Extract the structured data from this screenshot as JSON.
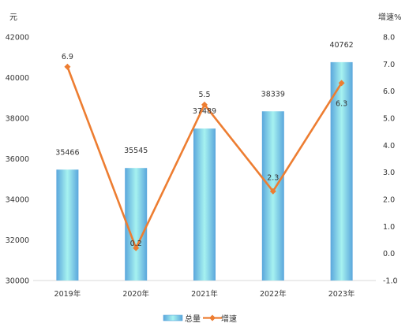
{
  "chart_data": {
    "type": "bar",
    "categories": [
      "2019年",
      "2020年",
      "2021年",
      "2022年",
      "2023年"
    ],
    "series": [
      {
        "name": "总量",
        "type": "bar",
        "axis": "left",
        "values": [
          35466,
          35545,
          37489,
          38339,
          40762
        ]
      },
      {
        "name": "增速",
        "type": "line",
        "axis": "right",
        "values": [
          6.9,
          0.2,
          5.5,
          2.3,
          6.3
        ]
      }
    ],
    "ylabel_left": "元",
    "ylabel_right": "增速%",
    "ylim_left": [
      30000,
      42000
    ],
    "ylim_right": [
      -1.0,
      8.0
    ],
    "yticks_left": [
      "30000",
      "32000",
      "34000",
      "36000",
      "38000",
      "40000",
      "42000"
    ],
    "yticks_right": [
      "-1.0",
      "0.0",
      "1.0",
      "2.0",
      "3.0",
      "4.0",
      "5.0",
      "6.0",
      "7.0",
      "8.0"
    ],
    "bar_labels": [
      "35466",
      "35545",
      "37489",
      "38339",
      "40762"
    ],
    "line_labels": [
      "6.9",
      "0.2",
      "5.5",
      "2.3",
      "6.3"
    ],
    "legend_position": "bottom",
    "grid": false,
    "colors": {
      "bar_edge": "#5aa6dc",
      "bar_center": "#a6f2f0",
      "line": "#ed7d31"
    }
  }
}
